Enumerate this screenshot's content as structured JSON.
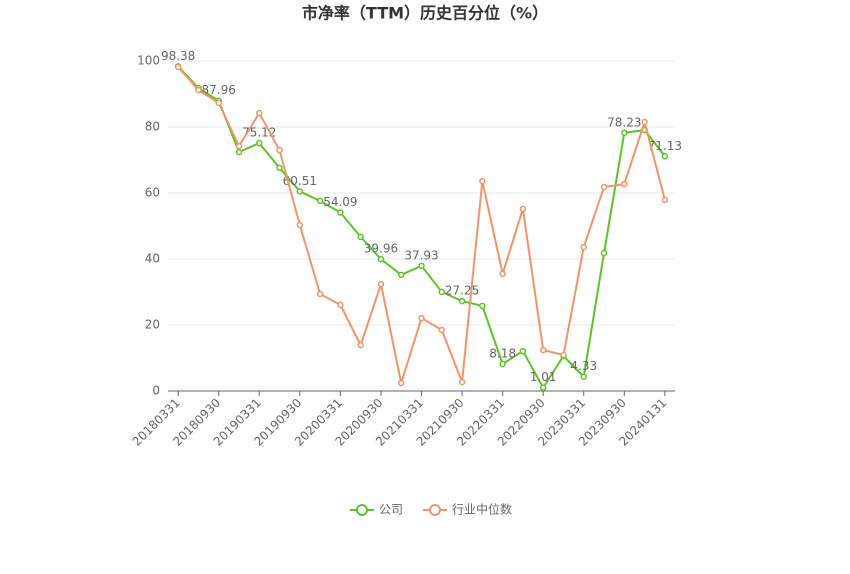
{
  "chart_data": {
    "type": "line",
    "title": "市净率（TTM）历史百分位（%）",
    "categories": [
      "20180331",
      null,
      "20180930",
      null,
      "20190331",
      null,
      "20190930",
      null,
      "20200331",
      null,
      "20200930",
      null,
      "20210331",
      null,
      "20210930",
      null,
      "20220331",
      null,
      "20220930",
      null,
      "20230331",
      null,
      "20230930",
      null,
      "20240131"
    ],
    "series": [
      {
        "name": "公司",
        "color": "#5cc42a",
        "values": [
          98.38,
          91.8,
          87.96,
          72.4,
          75.12,
          67.6,
          60.51,
          57.6,
          54.09,
          46.7,
          39.96,
          35.2,
          37.93,
          30.0,
          27.25,
          25.8,
          8.18,
          12.1,
          1.01,
          10.6,
          4.33,
          41.8,
          78.23,
          79.1,
          71.13
        ],
        "value_labels": [
          "98.38",
          null,
          "87.96",
          null,
          "75.12",
          null,
          "60.51",
          null,
          "54.09",
          null,
          "39.96",
          null,
          "37.93",
          null,
          "27.25",
          null,
          "8.18",
          null,
          "1.01",
          null,
          "4.33",
          null,
          "78.23",
          null,
          "71.13"
        ]
      },
      {
        "name": "行业中位数",
        "color": "#f0956a",
        "values": [
          98.2,
          91.2,
          87.3,
          74.2,
          84.2,
          73.0,
          50.3,
          29.4,
          26.1,
          13.9,
          32.4,
          2.4,
          22.1,
          18.5,
          2.7,
          63.6,
          35.5,
          55.2,
          12.4,
          10.9,
          43.6,
          61.8,
          62.7,
          81.5,
          57.9
        ]
      }
    ],
    "ylim": [
      0,
      100
    ],
    "yticks": [
      0,
      20,
      40,
      60,
      80,
      100
    ],
    "grid": true,
    "legend": "bottom"
  }
}
